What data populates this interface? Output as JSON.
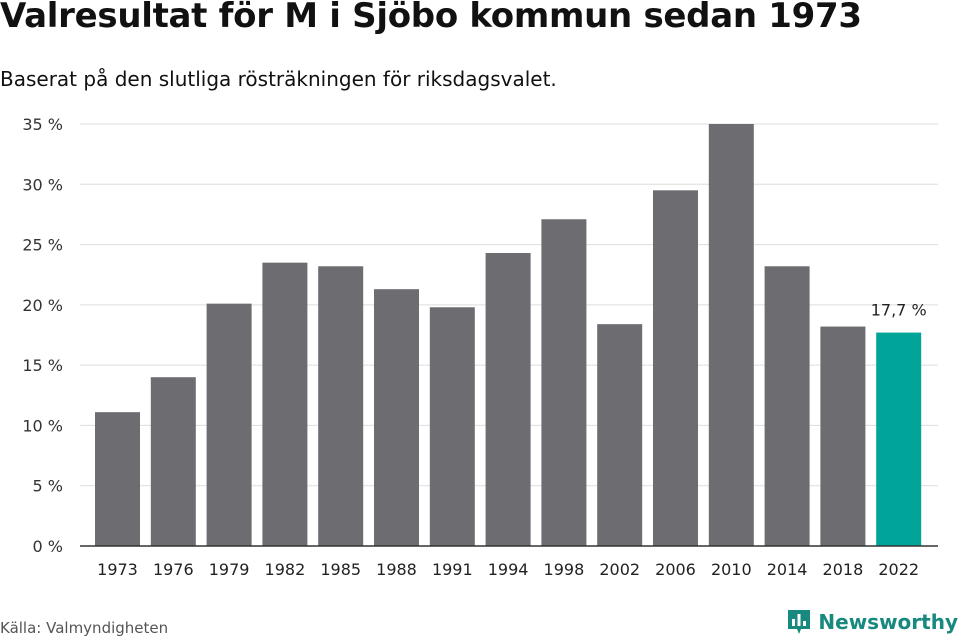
{
  "header": {
    "title": "Valresultat för M i Sjöbo kommun sedan 1973",
    "subtitle": "Baserat på den slutliga rösträkningen för riksdagsvalet."
  },
  "footer": {
    "source": "Källa: Valmyndigheten",
    "brand": "Newsworthy",
    "brand_icon": "newsworthy-logo-icon"
  },
  "chart_data": {
    "type": "bar",
    "categories": [
      "1973",
      "1976",
      "1979",
      "1982",
      "1985",
      "1988",
      "1991",
      "1994",
      "1998",
      "2002",
      "2006",
      "2010",
      "2014",
      "2018",
      "2022"
    ],
    "values": [
      11.1,
      14.0,
      20.1,
      23.5,
      23.2,
      21.3,
      19.8,
      24.3,
      27.1,
      18.4,
      29.5,
      35.0,
      23.2,
      18.2,
      17.7
    ],
    "ylim": [
      0,
      35
    ],
    "yticks": [
      0,
      5,
      10,
      15,
      20,
      25,
      30,
      35
    ],
    "ytick_labels": [
      "0 %",
      "5 %",
      "10 %",
      "15 %",
      "20 %",
      "25 %",
      "30 %",
      "35 %"
    ],
    "grid": true,
    "highlight_category": "2022",
    "annotations": [
      {
        "category": "2022",
        "text": "17,7 %"
      }
    ],
    "colors": {
      "bar": "#6d6c71",
      "highlight": "#00a499",
      "grid": "#dddddd",
      "axis": "#333333"
    }
  }
}
